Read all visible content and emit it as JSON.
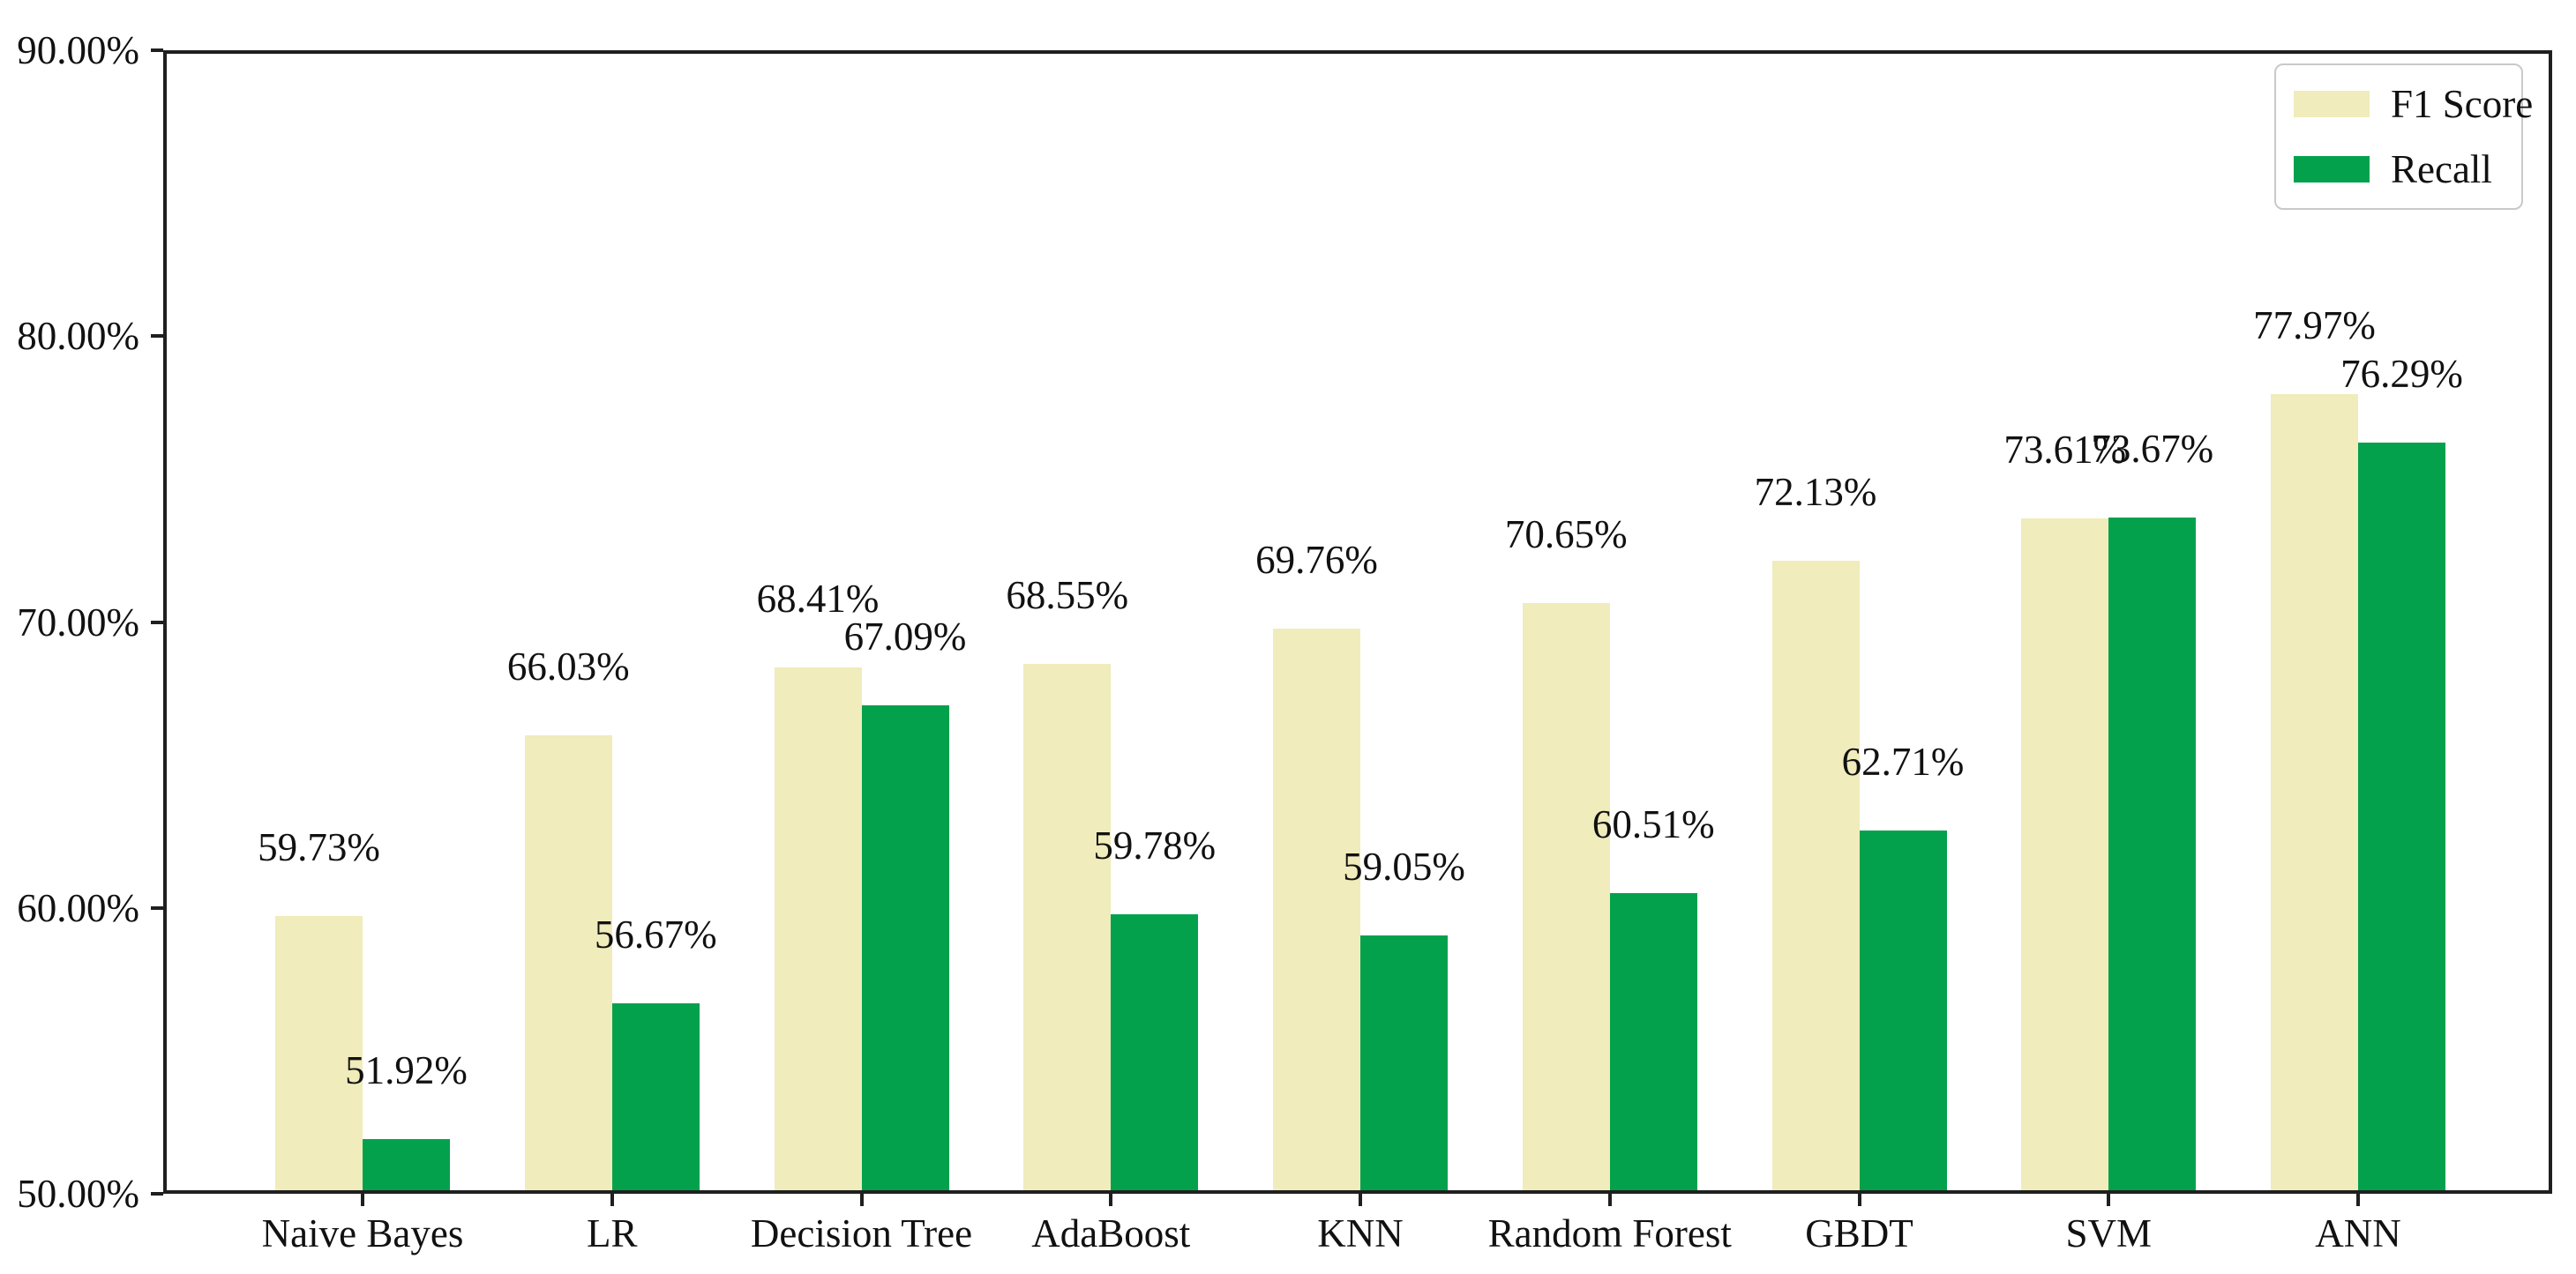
{
  "chart_data": {
    "type": "bar",
    "title": "",
    "xlabel": "",
    "ylabel": "",
    "categories": [
      "Naive Bayes",
      "LR",
      "Decision Tree",
      "AdaBoost",
      "KNN",
      "Random Forest",
      "GBDT",
      "SVM",
      "ANN"
    ],
    "series": [
      {
        "name": "F1 Score",
        "color": "#F0ECBB",
        "values": [
          59.73,
          66.03,
          68.41,
          68.55,
          69.76,
          70.65,
          72.13,
          73.61,
          77.97
        ]
      },
      {
        "name": "Recall",
        "color": "#04A14D",
        "values": [
          51.92,
          56.67,
          67.09,
          59.78,
          59.05,
          60.51,
          62.71,
          73.67,
          76.29
        ]
      }
    ],
    "value_labels": [
      "59.73%",
      "66.03%",
      "68.41%",
      "68.55%",
      "69.76%",
      "70.65%",
      "72.13%",
      "73.61%",
      "77.97%",
      "51.92%",
      "56.67%",
      "67.09%",
      "59.78%",
      "59.05%",
      "60.51%",
      "62.71%",
      "73.67%",
      "76.29%"
    ],
    "ylim": [
      50,
      90
    ],
    "yticks": [
      50,
      60,
      70,
      80,
      90
    ],
    "ytick_labels": [
      "50.00%",
      "60.00%",
      "70.00%",
      "80.00%",
      "90.00%"
    ],
    "grid": false,
    "legend_position": "upper right",
    "axis_color": "#1f1f1f",
    "background_color": "#ffffff"
  },
  "legend": {
    "items": [
      {
        "label": "F1 Score",
        "color": "#F0ECBB"
      },
      {
        "label": "Recall",
        "color": "#04A14D"
      }
    ]
  }
}
